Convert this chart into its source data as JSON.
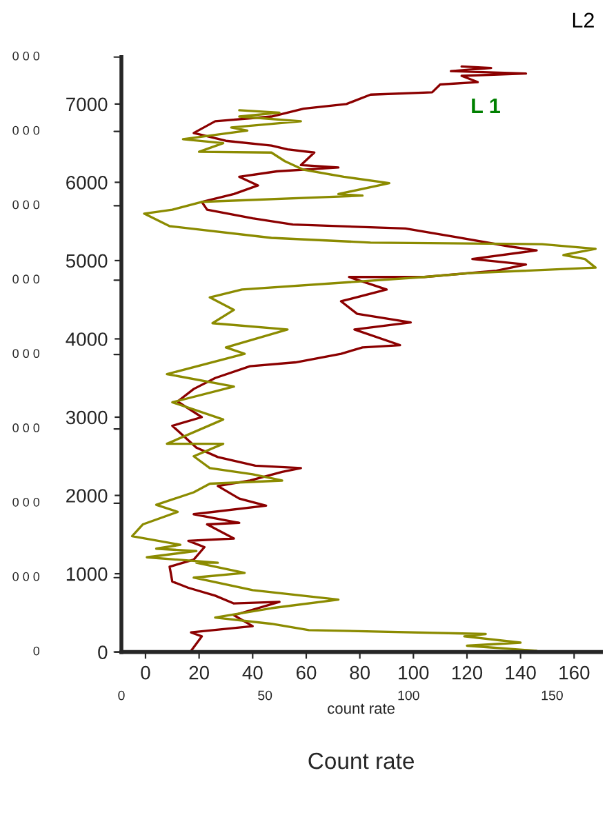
{
  "chart_data": {
    "type": "line",
    "xlabel": "Count rate",
    "x2label": "count rate",
    "xlim": [
      -9,
      170
    ],
    "xticks": [
      0,
      20,
      40,
      60,
      80,
      100,
      120,
      140,
      160
    ],
    "ylim": [
      0,
      7600
    ],
    "yticks": [
      0,
      1000,
      2000,
      3000,
      4000,
      5000,
      6000,
      7000
    ],
    "x2lim": [
      0,
      167
    ],
    "x2ticks": [
      0,
      50,
      100,
      150
    ],
    "annotations": [
      "L2",
      "L 1",
      "0",
      "0 0 0",
      "0 0 0",
      "0 0 0",
      "0 0 0",
      "0 0 0",
      "0 0 0",
      "0 0 0",
      "0 0 0"
    ],
    "series": [
      {
        "color": "#8b0000",
        "x": [
          17,
          21,
          17,
          40,
          33,
          50,
          33,
          26,
          16,
          10,
          9,
          18,
          22,
          16,
          33,
          23,
          35,
          18,
          45,
          35,
          27,
          39,
          51,
          58,
          41,
          27,
          19,
          10,
          21,
          12,
          18,
          26,
          39,
          56,
          73,
          81,
          95,
          78,
          99,
          79,
          73,
          90,
          76,
          104,
          131,
          142,
          122,
          146,
          136,
          116,
          97,
          55,
          40,
          23,
          21,
          33,
          42,
          35,
          49,
          72,
          58,
          63,
          53,
          47,
          30,
          18,
          26,
          47,
          59,
          75,
          84,
          107,
          110,
          124,
          118,
          142,
          114,
          129,
          118
        ],
        "values": [
          15,
          200,
          250,
          330,
          470,
          640,
          620,
          720,
          820,
          900,
          1090,
          1180,
          1340,
          1420,
          1450,
          1630,
          1650,
          1760,
          1870,
          1960,
          2120,
          2190,
          2300,
          2350,
          2380,
          2490,
          2610,
          2890,
          3000,
          3200,
          3360,
          3500,
          3650,
          3700,
          3810,
          3890,
          3920,
          4120,
          4210,
          4320,
          4480,
          4630,
          4790,
          4790,
          4870,
          4950,
          5020,
          5130,
          5180,
          5300,
          5410,
          5460,
          5540,
          5650,
          5750,
          5850,
          5960,
          6070,
          6140,
          6190,
          6220,
          6380,
          6420,
          6470,
          6530,
          6630,
          6780,
          6840,
          6940,
          7000,
          7120,
          7150,
          7250,
          7280,
          7360,
          7390,
          7420,
          7460,
          7480
        ]
      },
      {
        "color": "#8b8b00",
        "x": [
          102,
          146,
          120,
          140,
          119,
          127,
          61,
          47,
          26,
          47,
          72,
          40,
          18,
          37,
          19,
          27,
          0.5,
          19,
          4,
          13,
          -5,
          -1,
          12,
          4,
          18,
          24,
          51,
          40,
          24,
          18,
          29,
          8,
          29,
          10,
          33,
          8,
          37,
          30,
          53,
          25,
          33,
          24,
          36,
          104,
          121,
          168,
          164,
          156,
          168,
          148,
          84,
          47,
          9,
          -0.5,
          10,
          21,
          81,
          72,
          91,
          74,
          59,
          52,
          47,
          20,
          29,
          14,
          38,
          32,
          58,
          35,
          50,
          35
        ],
        "values": [
          0,
          15,
          80,
          120,
          200,
          230,
          280,
          360,
          440,
          560,
          670,
          790,
          950,
          1010,
          1140,
          1140,
          1210,
          1290,
          1320,
          1370,
          1480,
          1630,
          1790,
          1880,
          2040,
          2150,
          2190,
          2270,
          2350,
          2500,
          2660,
          2660,
          2970,
          3190,
          3390,
          3550,
          3810,
          3890,
          4120,
          4200,
          4370,
          4530,
          4630,
          4790,
          4840,
          4910,
          5020,
          5070,
          5150,
          5210,
          5230,
          5290,
          5440,
          5600,
          5650,
          5750,
          5830,
          5850,
          5990,
          6070,
          6160,
          6270,
          6380,
          6390,
          6500,
          6550,
          6660,
          6700,
          6780,
          6840,
          6890,
          6920
        ]
      }
    ]
  }
}
